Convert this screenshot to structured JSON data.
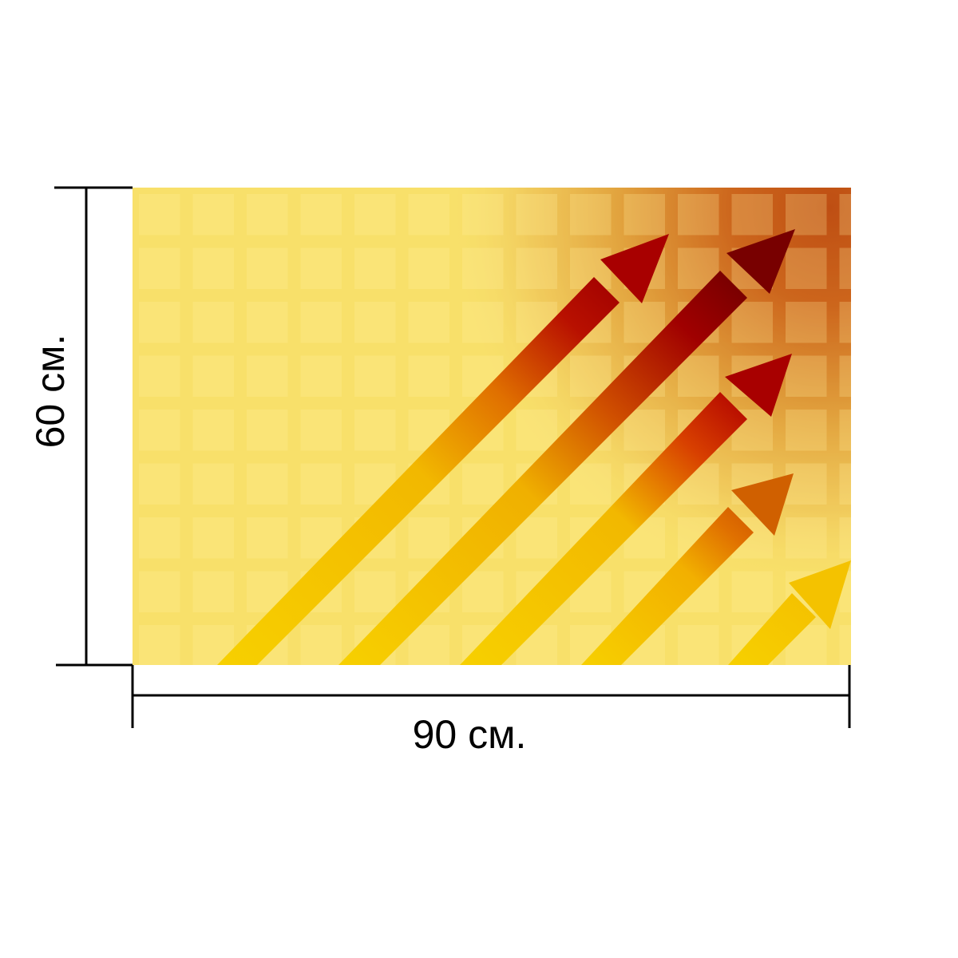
{
  "dimensions": {
    "width_label": "90 см.",
    "height_label": "60 см."
  },
  "artwork": {
    "subject": "rising-arrows",
    "arrow_count": 5,
    "colors": {
      "background_light": "#FAE77A",
      "background_warm": "#E0A040",
      "background_dark": "#B03010",
      "arrow_base": "#F7D000",
      "arrow_mid": "#E07000",
      "arrow_tip": "#A80000",
      "arrow_tip_dark": "#780000",
      "dimension_lines": "#000000"
    }
  }
}
